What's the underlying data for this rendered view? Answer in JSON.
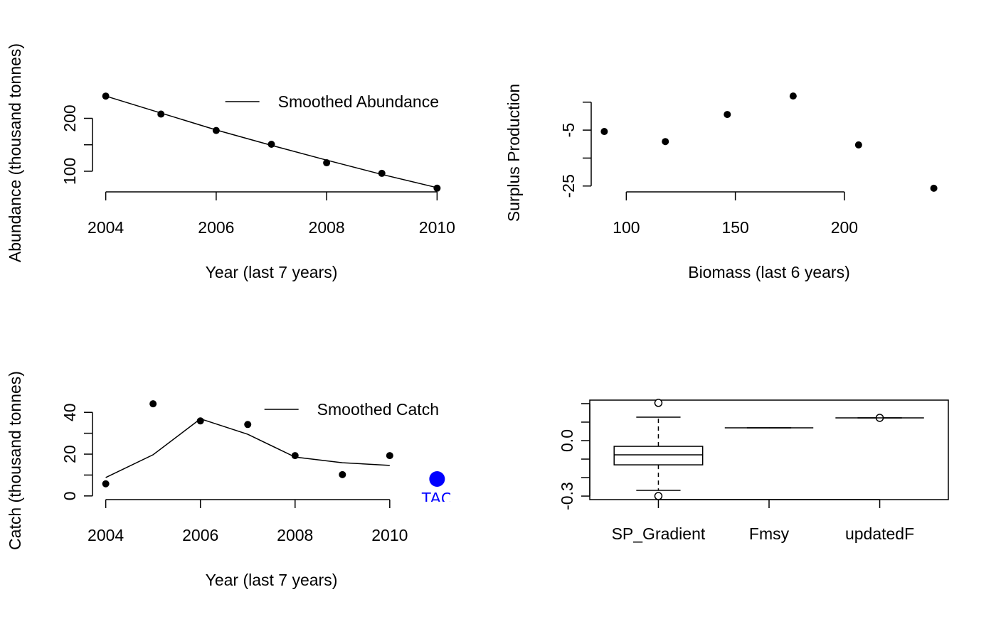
{
  "chart_data": [
    {
      "type": "line",
      "xlabel": "Year (last 7 years)",
      "ylabel": "Abundance (thousand tonnes)",
      "x": [
        2004,
        2005,
        2006,
        2007,
        2008,
        2009,
        2010
      ],
      "values": [
        242,
        208,
        177,
        151,
        116,
        96,
        68
      ],
      "color": "#000000",
      "series": [
        {
          "name": "Smoothed Abundance",
          "color": "#000000",
          "values": [
            242,
            210,
            178,
            149,
            121,
            94,
            69
          ]
        }
      ],
      "xlim": [
        2003.76,
        2010.24
      ],
      "ylim": [
        61,
        249
      ],
      "xticks": [
        2004,
        2006,
        2008,
        2010
      ],
      "yticks": [
        100,
        {
          "value": 150,
          "label": null
        },
        200
      ],
      "legend": "topright"
    },
    {
      "type": "scatter",
      "xlabel": "Biomass (last 6 years)",
      "ylabel": "Surplus Production",
      "x": [
        89.9,
        117.9,
        146.3,
        176.5,
        206.5,
        241
      ],
      "values": [
        -5.5,
        -9.1,
        0.6,
        7.2,
        -10.3,
        -25.8
      ],
      "color": "#000000",
      "xlim": [
        83.9,
        247
      ],
      "ylim": [
        -27.1,
        8.5
      ],
      "xticks": [
        100,
        150,
        200
      ],
      "yticks": [
        -25,
        {
          "value": -15,
          "label": null
        },
        -5,
        {
          "value": 5,
          "label": null
        }
      ]
    },
    {
      "type": "line",
      "xlabel": "Year (last 7 years)",
      "ylabel": "Catch (thousand tonnes)",
      "x": [
        2004,
        2005,
        2006,
        2007,
        2008,
        2009,
        2010
      ],
      "values": [
        5.8,
        44.1,
        35.9,
        34.2,
        19.3,
        10.2,
        19.3
      ],
      "color": "#000000",
      "series": [
        {
          "name": "Smoothed Catch",
          "color": "#000000",
          "values": [
            8.8,
            19.7,
            36.9,
            29.5,
            18.6,
            15.9,
            14.6
          ]
        }
      ],
      "tac": {
        "label": "TAC",
        "x": 2011,
        "value": 8.1,
        "color": "#0000ff"
      },
      "xlim": [
        2003.72,
        2011.28
      ],
      "ylim": [
        -1.76,
        45.86
      ],
      "xticks": [
        2004,
        2006,
        2008,
        2010
      ],
      "yticks": [
        0,
        {
          "value": 10,
          "label": null
        },
        20,
        {
          "value": 30,
          "label": null
        },
        40
      ],
      "legend": "topright"
    },
    {
      "type": "box",
      "categories": [
        "SP_Gradient",
        "Fmsy",
        "updatedF"
      ],
      "boxes": [
        {
          "whisker_low": -0.269,
          "q1": -0.131,
          "median": -0.077,
          "q3": -0.031,
          "whisker_high": 0.127,
          "outliers": [
            0.204,
            -0.3
          ]
        },
        {
          "whisker_low": 0.069,
          "q1": 0.069,
          "median": 0.069,
          "q3": 0.069,
          "whisker_high": 0.069,
          "outliers": []
        },
        {
          "whisker_low": 0.123,
          "q1": 0.123,
          "median": 0.123,
          "q3": 0.123,
          "whisker_high": 0.123,
          "outliers": [
            0.123
          ]
        }
      ],
      "xlim": [
        0.38,
        3.62
      ],
      "ylim": [
        -0.319,
        0.219
      ],
      "yticks": [
        -0.3,
        {
          "value": -0.2,
          "label": null
        },
        {
          "value": -0.1,
          "label": null
        },
        {
          "value": 0,
          "label": "0.0"
        },
        {
          "value": 0.1,
          "label": null
        },
        {
          "value": 0.2,
          "label": null
        }
      ]
    }
  ]
}
